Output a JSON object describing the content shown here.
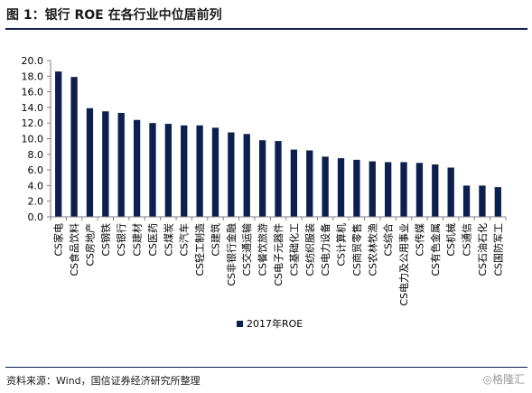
{
  "figure": {
    "title": "图 1：银行 ROE 在各行业中位居前列",
    "source": "资料来源：Wind，国信证券经济研究所整理",
    "watermark": "◎格隆汇"
  },
  "chart_data": {
    "type": "bar",
    "title": "",
    "xlabel": "",
    "ylabel": "",
    "ylim": [
      0,
      20
    ],
    "yticks": [
      "0.0",
      "2.0",
      "4.0",
      "6.0",
      "8.0",
      "10.0",
      "12.0",
      "14.0",
      "16.0",
      "18.0",
      "20.0"
    ],
    "grid": false,
    "legend": "bottom-center",
    "bar_color": "#0c1f4f",
    "categories": [
      "CS家电",
      "CS食品饮料",
      "CS房地产",
      "CS钢铁",
      "CS银行",
      "CS建材",
      "CS医药",
      "CS煤炭",
      "CS汽车",
      "CS轻工制造",
      "CS建筑",
      "CS非银行金融",
      "CS交通运输",
      "CS餐饮旅游",
      "CS电子元器件",
      "CS基础化工",
      "CS纺织服装",
      "CS电力设备",
      "CS计算机",
      "CS商贸零售",
      "CS农林牧渔",
      "CS综合",
      "CS电力及公用事业",
      "CS传媒",
      "CS有色金属",
      "CS机械",
      "CS通信",
      "CS石油石化",
      "CS国防军工"
    ],
    "series": [
      {
        "name": "2017年ROE",
        "values": [
          18.6,
          17.9,
          13.9,
          13.5,
          13.3,
          12.4,
          12.0,
          11.9,
          11.7,
          11.7,
          11.4,
          10.8,
          10.6,
          9.8,
          9.7,
          8.6,
          8.5,
          7.7,
          7.5,
          7.3,
          7.1,
          7.0,
          7.0,
          6.9,
          6.7,
          6.3,
          4.0,
          4.0,
          3.8
        ]
      }
    ]
  }
}
